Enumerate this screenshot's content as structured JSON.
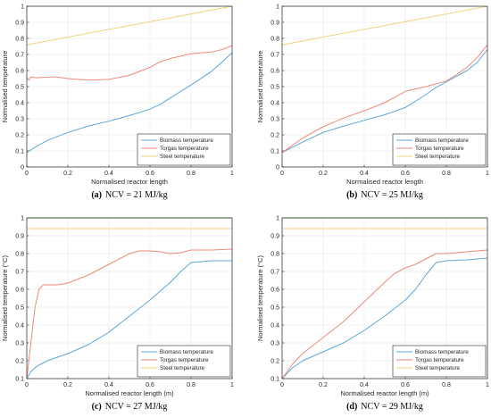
{
  "colors": {
    "biomass": "#5da7d8",
    "torgas": "#ee8a78",
    "steel": "#f0d37e",
    "green_line": "#6fbf5a",
    "grid": "#e6e6e6",
    "axis": "#262626"
  },
  "chart_data": [
    {
      "type": "line",
      "panel_label": "(a)",
      "caption": "NCV = 21 MJ/kg",
      "xlabel": "Normalised reactor length",
      "ylabel": "Normalised temperature",
      "xlim": [
        0,
        1
      ],
      "ylim": [
        0,
        1
      ],
      "xticks": [
        "0",
        "0.2",
        "0.4",
        "0.6",
        "0.8",
        "1"
      ],
      "yticks": [
        "0",
        "0.1",
        "0.2",
        "0.3",
        "0.4",
        "0.5",
        "0.6",
        "0.7",
        "0.8",
        "0.9",
        "1"
      ],
      "grid": true,
      "legend_position": "bottom-right",
      "series": [
        {
          "name": "Biomass temperature",
          "color_key": "biomass",
          "x": [
            0,
            0.05,
            0.1,
            0.15,
            0.2,
            0.3,
            0.4,
            0.5,
            0.6,
            0.65,
            0.7,
            0.8,
            0.9,
            1.0
          ],
          "y": [
            0.09,
            0.13,
            0.165,
            0.19,
            0.215,
            0.255,
            0.285,
            0.32,
            0.36,
            0.39,
            0.43,
            0.51,
            0.595,
            0.71
          ]
        },
        {
          "name": "Torgas temperature",
          "color_key": "torgas",
          "x": [
            0,
            0.01,
            0.02,
            0.05,
            0.1,
            0.15,
            0.2,
            0.3,
            0.4,
            0.5,
            0.6,
            0.65,
            0.7,
            0.8,
            0.9,
            0.95,
            1.0
          ],
          "y": [
            0.555,
            0.54,
            0.56,
            0.555,
            0.56,
            0.56,
            0.55,
            0.54,
            0.545,
            0.57,
            0.62,
            0.655,
            0.675,
            0.705,
            0.715,
            0.73,
            0.755
          ]
        },
        {
          "name": "Steel temperature",
          "color_key": "steel",
          "x": [
            0,
            1
          ],
          "y": [
            0.76,
            1.0
          ]
        }
      ]
    },
    {
      "type": "line",
      "panel_label": "(b)",
      "caption": "NCV = 25 MJ/kg",
      "xlabel": "Normalised reactor length",
      "ylabel": "Normalised temperature",
      "xlim": [
        0,
        1
      ],
      "ylim": [
        0,
        1
      ],
      "xticks": [
        "0",
        "0.2",
        "0.4",
        "0.6",
        "0.8",
        "1"
      ],
      "yticks": [
        "0",
        "0.1",
        "0.2",
        "0.3",
        "0.4",
        "0.5",
        "0.6",
        "0.7",
        "0.8",
        "0.9",
        "1"
      ],
      "grid": true,
      "legend_position": "bottom-right",
      "series": [
        {
          "name": "Biomass temperature",
          "color_key": "biomass",
          "x": [
            0,
            0.1,
            0.2,
            0.3,
            0.4,
            0.5,
            0.6,
            0.65,
            0.7,
            0.75,
            0.8,
            0.85,
            0.9,
            0.95,
            1.0
          ],
          "y": [
            0.09,
            0.155,
            0.215,
            0.255,
            0.29,
            0.325,
            0.37,
            0.41,
            0.45,
            0.495,
            0.53,
            0.565,
            0.6,
            0.65,
            0.73
          ]
        },
        {
          "name": "Torgas temperature",
          "color_key": "torgas",
          "x": [
            0,
            0.1,
            0.2,
            0.3,
            0.4,
            0.5,
            0.6,
            0.63,
            0.7,
            0.8,
            0.85,
            0.9,
            0.95,
            1.0
          ],
          "y": [
            0.09,
            0.18,
            0.25,
            0.305,
            0.35,
            0.4,
            0.47,
            0.48,
            0.5,
            0.535,
            0.575,
            0.62,
            0.68,
            0.76
          ]
        },
        {
          "name": "Steel temperature",
          "color_key": "steel",
          "x": [
            0,
            1
          ],
          "y": [
            0.76,
            1.0
          ]
        }
      ]
    },
    {
      "type": "line",
      "panel_label": "(c)",
      "caption": "NCV = 27 MJ/kg",
      "xlabel": "Normalised reactor length (m)",
      "ylabel": "Normalised temperature (°C)",
      "xlim": [
        0,
        1
      ],
      "ylim": [
        0.1,
        1
      ],
      "xticks": [
        "0",
        "0.2",
        "0.4",
        "0.6",
        "0.8",
        "1"
      ],
      "yticks": [
        "0.1",
        "0.2",
        "0.3",
        "0.4",
        "0.5",
        "0.6",
        "0.7",
        "0.8",
        "0.9",
        "1"
      ],
      "grid": true,
      "legend_position": "bottom-right",
      "series": [
        {
          "name": "Biomass temperature",
          "color_key": "biomass",
          "x": [
            0,
            0.02,
            0.05,
            0.1,
            0.2,
            0.3,
            0.4,
            0.5,
            0.6,
            0.7,
            0.75,
            0.8,
            0.85,
            0.9,
            1.0
          ],
          "y": [
            0.1,
            0.14,
            0.17,
            0.2,
            0.24,
            0.29,
            0.36,
            0.45,
            0.54,
            0.64,
            0.7,
            0.75,
            0.755,
            0.76,
            0.76
          ]
        },
        {
          "name": "Torgas temperature",
          "color_key": "torgas",
          "x": [
            0,
            0.02,
            0.04,
            0.06,
            0.08,
            0.1,
            0.15,
            0.2,
            0.3,
            0.4,
            0.5,
            0.55,
            0.6,
            0.65,
            0.7,
            0.75,
            0.8,
            0.9,
            1.0
          ],
          "y": [
            0.1,
            0.3,
            0.5,
            0.6,
            0.625,
            0.625,
            0.625,
            0.635,
            0.68,
            0.74,
            0.8,
            0.815,
            0.815,
            0.81,
            0.8,
            0.805,
            0.82,
            0.82,
            0.825
          ]
        },
        {
          "name": "Steel temperature",
          "color_key": "steel",
          "x": [
            0,
            1
          ],
          "y": [
            0.94,
            0.94
          ]
        },
        {
          "color_key": "green_line",
          "x": [
            0,
            1
          ],
          "y": [
            1.0,
            1.0
          ]
        }
      ]
    },
    {
      "type": "line",
      "panel_label": "(d)",
      "caption": "NCV = 29 MJ/kg",
      "xlabel": "Normalised reactor length (m)",
      "ylabel": "Normalised temperature (°C)",
      "xlim": [
        0,
        1
      ],
      "ylim": [
        0.1,
        1
      ],
      "xticks": [
        "0",
        "0.2",
        "0.4",
        "0.6",
        "0.8",
        "1"
      ],
      "yticks": [
        "0.1",
        "0.2",
        "0.3",
        "0.4",
        "0.5",
        "0.6",
        "0.7",
        "0.8",
        "0.9",
        "1"
      ],
      "grid": true,
      "legend_position": "bottom-right",
      "series": [
        {
          "name": "Biomass temperature",
          "color_key": "biomass",
          "x": [
            0,
            0.05,
            0.1,
            0.2,
            0.3,
            0.4,
            0.5,
            0.6,
            0.65,
            0.7,
            0.75,
            0.8,
            0.9,
            1.0
          ],
          "y": [
            0.1,
            0.16,
            0.2,
            0.25,
            0.3,
            0.37,
            0.45,
            0.54,
            0.6,
            0.68,
            0.75,
            0.76,
            0.765,
            0.775
          ]
        },
        {
          "name": "Torgas temperature",
          "color_key": "torgas",
          "x": [
            0,
            0.05,
            0.1,
            0.2,
            0.3,
            0.4,
            0.5,
            0.55,
            0.6,
            0.65,
            0.7,
            0.75,
            0.8,
            0.9,
            1.0
          ],
          "y": [
            0.1,
            0.18,
            0.24,
            0.33,
            0.42,
            0.53,
            0.64,
            0.69,
            0.72,
            0.74,
            0.77,
            0.8,
            0.8,
            0.81,
            0.82
          ]
        },
        {
          "name": "Steel temperature",
          "color_key": "steel",
          "x": [
            0,
            1
          ],
          "y": [
            0.94,
            0.94
          ]
        },
        {
          "color_key": "green_line",
          "x": [
            0,
            1
          ],
          "y": [
            1.0,
            1.0
          ]
        }
      ]
    }
  ]
}
